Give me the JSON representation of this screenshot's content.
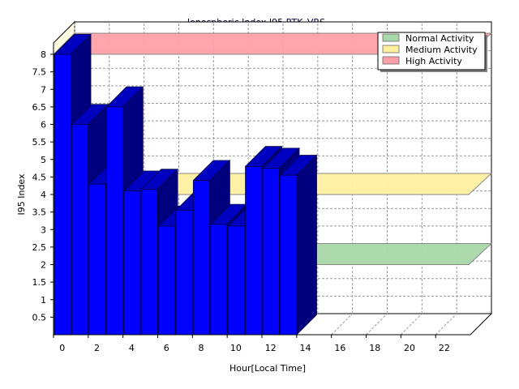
{
  "chart_data": {
    "type": "bar",
    "title": "Ionospheric Index I95 RTK_VRS",
    "xlabel": "Hour[Local Time]",
    "ylabel": "I95 Index",
    "x": [
      0,
      1,
      2,
      3,
      4,
      5,
      6,
      7,
      8,
      9,
      10,
      11,
      12,
      13,
      14
    ],
    "values": [
      8.0,
      6.0,
      4.3,
      6.5,
      4.1,
      4.15,
      3.1,
      3.55,
      4.4,
      3.15,
      3.1,
      4.8,
      4.75,
      4.55,
      0
    ],
    "x_ticks": [
      "0",
      "2",
      "4",
      "6",
      "8",
      "10",
      "12",
      "14",
      "16",
      "18",
      "20",
      "22"
    ],
    "y_ticks": [
      "0.5",
      "1",
      "1.5",
      "2",
      "2.5",
      "3",
      "3.5",
      "4",
      "4.5",
      "5",
      "5.5",
      "6",
      "6.5",
      "7",
      "7.5",
      "8"
    ],
    "xlim": [
      0,
      24
    ],
    "ylim": [
      0,
      8
    ],
    "grid": true,
    "legend_position": "top-right",
    "bar_color": "#0000ff",
    "bands": [
      {
        "name": "Normal Activity",
        "value": 2,
        "color": "#a8d8a8"
      },
      {
        "name": "Medium Activity",
        "value": 4,
        "color": "#fff0a0"
      },
      {
        "name": "High Activity",
        "value": 8,
        "color": "#ffa0a8"
      }
    ]
  }
}
